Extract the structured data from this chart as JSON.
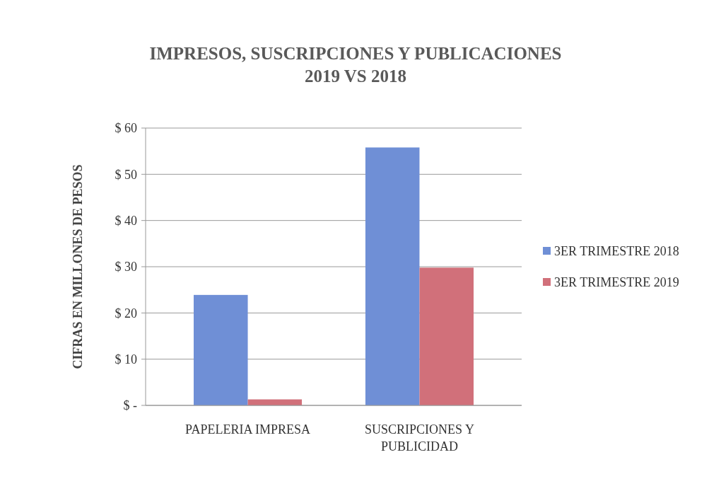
{
  "chart_data": {
    "type": "bar",
    "title": "IMPRESOS, SUSCRIPCIONES  Y PUBLICACIONES\n2019 VS 2018",
    "ylabel": "CIFRAS EN MILLONES DE PESOS",
    "categories": [
      "PAPELERIA IMPRESA",
      "SUSCRIPCIONES Y\nPUBLICIDAD"
    ],
    "series": [
      {
        "name": "3ER TRIMESTRE 2018",
        "color": "#6f8fd6",
        "values": [
          23.9,
          55.8
        ]
      },
      {
        "name": "3ER TRIMESTRE 2019",
        "color": "#d1707a",
        "values": [
          1.3,
          29.8
        ]
      }
    ],
    "ylim": [
      0,
      60
    ],
    "yticks": [
      {
        "value": 0,
        "label": "$ -"
      },
      {
        "value": 10,
        "label": "$ 10"
      },
      {
        "value": 20,
        "label": "$ 20"
      },
      {
        "value": 30,
        "label": "$ 30"
      },
      {
        "value": 40,
        "label": "$ 40"
      },
      {
        "value": 50,
        "label": "$ 50"
      },
      {
        "value": 60,
        "label": "$ 60"
      }
    ],
    "grid": "y",
    "legend": "right"
  }
}
